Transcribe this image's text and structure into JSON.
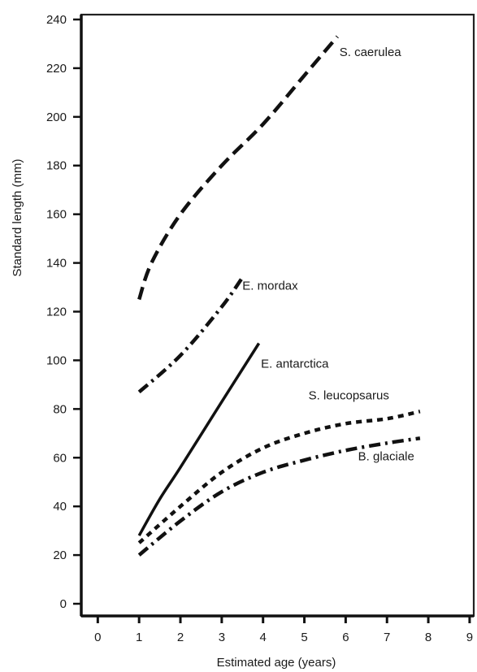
{
  "chart_data": {
    "type": "line",
    "title": "",
    "xlabel": "Estimated age (years)",
    "ylabel": "Standard length (mm)",
    "xlim": [
      -0.4,
      9.1
    ],
    "ylim": [
      -5,
      242
    ],
    "xticks": [
      0,
      1,
      2,
      3,
      4,
      5,
      6,
      7,
      8,
      9
    ],
    "yticks": [
      0,
      20,
      40,
      60,
      80,
      100,
      120,
      140,
      160,
      180,
      200,
      220,
      240
    ],
    "grid": false,
    "legend": "none (series labelled directly on plot)",
    "series": [
      {
        "name": "S. caerulea",
        "style": "dash",
        "x": [
          1.0,
          1.3,
          2.0,
          3.0,
          4.0,
          5.0,
          5.8
        ],
        "y": [
          125,
          140,
          160,
          180,
          197,
          217,
          233
        ],
        "label_at": [
          5.85,
          225
        ]
      },
      {
        "name": "E. mordax",
        "style": "dashdot",
        "x": [
          1.0,
          2.0,
          3.0,
          3.5
        ],
        "y": [
          87,
          102,
          122,
          134
        ],
        "label_at": [
          3.5,
          129
        ]
      },
      {
        "name": "E. antarctica",
        "style": "solid",
        "x": [
          1.0,
          1.5,
          2.0,
          3.0,
          3.9
        ],
        "y": [
          28,
          43,
          56,
          83,
          107
        ],
        "label_at": [
          3.95,
          97
        ]
      },
      {
        "name": "S. leucopsarus",
        "style": "dot",
        "x": [
          1.0,
          2.0,
          3.0,
          4.0,
          5.0,
          6.0,
          7.0,
          7.8
        ],
        "y": [
          25,
          40,
          54,
          64,
          70,
          74,
          76,
          79
        ],
        "label_at": [
          5.1,
          84
        ]
      },
      {
        "name": "B. glaciale",
        "style": "dashdot",
        "x": [
          1.0,
          2.0,
          3.0,
          4.0,
          5.0,
          6.0,
          7.0,
          7.8
        ],
        "y": [
          20,
          34,
          46,
          54,
          59,
          63,
          66,
          68
        ],
        "label_at": [
          6.3,
          59
        ]
      }
    ]
  }
}
